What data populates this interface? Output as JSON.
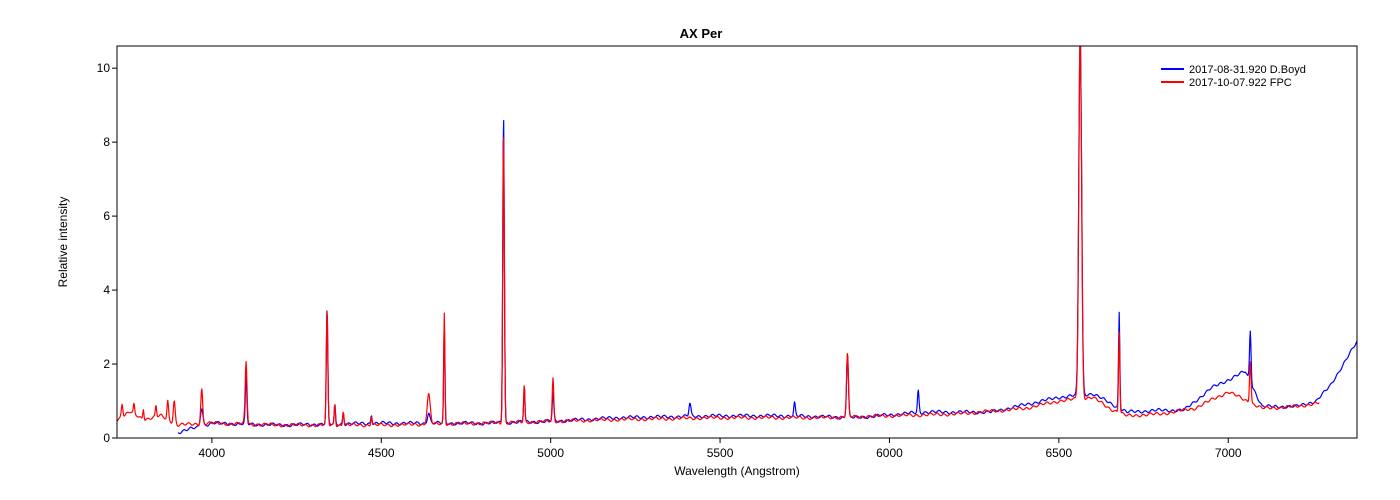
{
  "chart_data": {
    "type": "line",
    "title": "AX Per",
    "xlabel": "Wavelength (Angstrom)",
    "ylabel": "Relative intensity",
    "xlim": [
      3720,
      7380
    ],
    "ylim": [
      0,
      10.6
    ],
    "x_ticks": [
      4000,
      4500,
      5000,
      5500,
      6000,
      6500,
      7000
    ],
    "y_ticks": [
      0,
      2,
      4,
      6,
      8,
      10
    ],
    "grid": false,
    "legend_position": "top-right",
    "series": [
      {
        "name": "2017-08-31.920  D.Boyd",
        "color": "#0000ff",
        "x_range": [
          3900,
          7380
        ],
        "continuum": [
          [
            3900,
            0.15
          ],
          [
            3960,
            0.3
          ],
          [
            4000,
            0.4
          ],
          [
            4200,
            0.35
          ],
          [
            4500,
            0.4
          ],
          [
            4800,
            0.4
          ],
          [
            5000,
            0.45
          ],
          [
            5200,
            0.55
          ],
          [
            5500,
            0.6
          ],
          [
            5700,
            0.6
          ],
          [
            5900,
            0.55
          ],
          [
            6100,
            0.7
          ],
          [
            6300,
            0.7
          ],
          [
            6500,
            1.1
          ],
          [
            6600,
            1.2
          ],
          [
            6650,
            0.95
          ],
          [
            6700,
            0.7
          ],
          [
            6800,
            0.75
          ],
          [
            6870,
            0.75
          ],
          [
            6950,
            1.35
          ],
          [
            7050,
            1.8
          ],
          [
            7100,
            0.85
          ],
          [
            7200,
            0.85
          ],
          [
            7260,
            1.0
          ],
          [
            7300,
            1.4
          ],
          [
            7380,
            2.6
          ]
        ],
        "peaks": [
          [
            3970,
            0.5,
            8
          ],
          [
            4101,
            1.25,
            5
          ],
          [
            4340,
            3.1,
            5
          ],
          [
            4363,
            0.5,
            4
          ],
          [
            4388,
            0.3,
            4
          ],
          [
            4471,
            0.25,
            4
          ],
          [
            4640,
            0.3,
            8
          ],
          [
            4686,
            2.7,
            4
          ],
          [
            4861,
            8.4,
            5
          ],
          [
            4922,
            1.0,
            4
          ],
          [
            5007,
            0.75,
            5
          ],
          [
            5411,
            0.35,
            6
          ],
          [
            5720,
            0.35,
            5
          ],
          [
            5876,
            1.75,
            6
          ],
          [
            6085,
            0.6,
            5
          ],
          [
            6563,
            9.8,
            9
          ],
          [
            6678,
            2.6,
            4
          ],
          [
            7065,
            1.4,
            5
          ]
        ]
      },
      {
        "name": "2017-10-07.922  FPC",
        "color": "#ff0000",
        "x_range": [
          3720,
          7270
        ],
        "continuum": [
          [
            3720,
            0.5
          ],
          [
            3760,
            0.7
          ],
          [
            3800,
            0.5
          ],
          [
            3850,
            0.6
          ],
          [
            3900,
            0.35
          ],
          [
            4000,
            0.4
          ],
          [
            4200,
            0.35
          ],
          [
            4500,
            0.35
          ],
          [
            4800,
            0.4
          ],
          [
            5000,
            0.45
          ],
          [
            5200,
            0.5
          ],
          [
            5500,
            0.55
          ],
          [
            5800,
            0.55
          ],
          [
            6000,
            0.6
          ],
          [
            6200,
            0.65
          ],
          [
            6400,
            0.8
          ],
          [
            6500,
            1.0
          ],
          [
            6600,
            1.1
          ],
          [
            6650,
            0.8
          ],
          [
            6700,
            0.6
          ],
          [
            6800,
            0.65
          ],
          [
            6900,
            0.8
          ],
          [
            7000,
            1.25
          ],
          [
            7100,
            0.8
          ],
          [
            7200,
            0.85
          ],
          [
            7270,
            0.95
          ]
        ],
        "peaks": [
          [
            3735,
            0.35,
            5
          ],
          [
            3770,
            0.25,
            4
          ],
          [
            3798,
            0.3,
            4
          ],
          [
            3835,
            0.3,
            4
          ],
          [
            3870,
            0.5,
            5
          ],
          [
            3889,
            0.6,
            6
          ],
          [
            3970,
            0.95,
            6
          ],
          [
            4101,
            1.7,
            6
          ],
          [
            4340,
            3.1,
            5
          ],
          [
            4363,
            0.6,
            4
          ],
          [
            4388,
            0.4,
            4
          ],
          [
            4471,
            0.25,
            4
          ],
          [
            4640,
            0.8,
            10
          ],
          [
            4686,
            3.0,
            4
          ],
          [
            4861,
            7.9,
            5
          ],
          [
            4922,
            1.0,
            4
          ],
          [
            5007,
            1.15,
            5
          ],
          [
            5876,
            1.7,
            6
          ],
          [
            6563,
            9.9,
            9
          ],
          [
            6678,
            2.2,
            4
          ],
          [
            7065,
            1.15,
            5
          ]
        ]
      }
    ]
  }
}
